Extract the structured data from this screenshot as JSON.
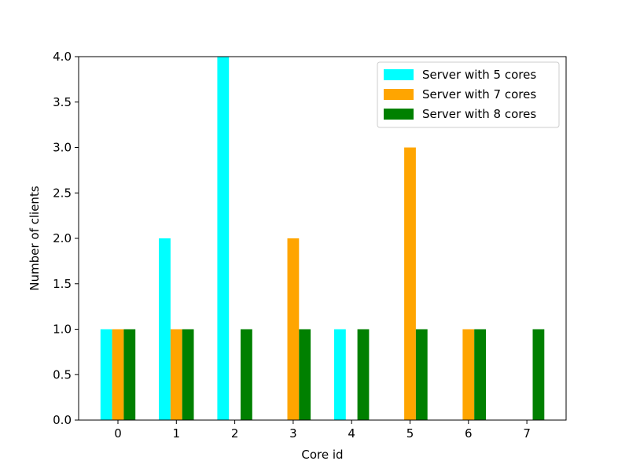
{
  "chart_data": {
    "type": "bar",
    "categories": [
      "0",
      "1",
      "2",
      "3",
      "4",
      "5",
      "6",
      "7"
    ],
    "series": [
      {
        "name": "Server with 5 cores",
        "color": "#00ffff",
        "values": [
          1,
          2,
          4,
          0,
          1,
          null,
          null,
          null
        ]
      },
      {
        "name": "Server with 7 cores",
        "color": "#ffa500",
        "values": [
          1,
          1,
          0,
          2,
          0,
          3,
          1,
          null
        ]
      },
      {
        "name": "Server with 8 cores",
        "color": "#008000",
        "values": [
          1,
          1,
          1,
          1,
          1,
          1,
          1,
          1
        ]
      }
    ],
    "xlabel": "Core id",
    "ylabel": "Number of clients",
    "ylim": [
      0,
      4
    ],
    "yticks": [
      "0.0",
      "0.5",
      "1.0",
      "1.5",
      "2.0",
      "2.5",
      "3.0",
      "3.5",
      "4.0"
    ],
    "grid": false,
    "legend_position": "top-right"
  }
}
